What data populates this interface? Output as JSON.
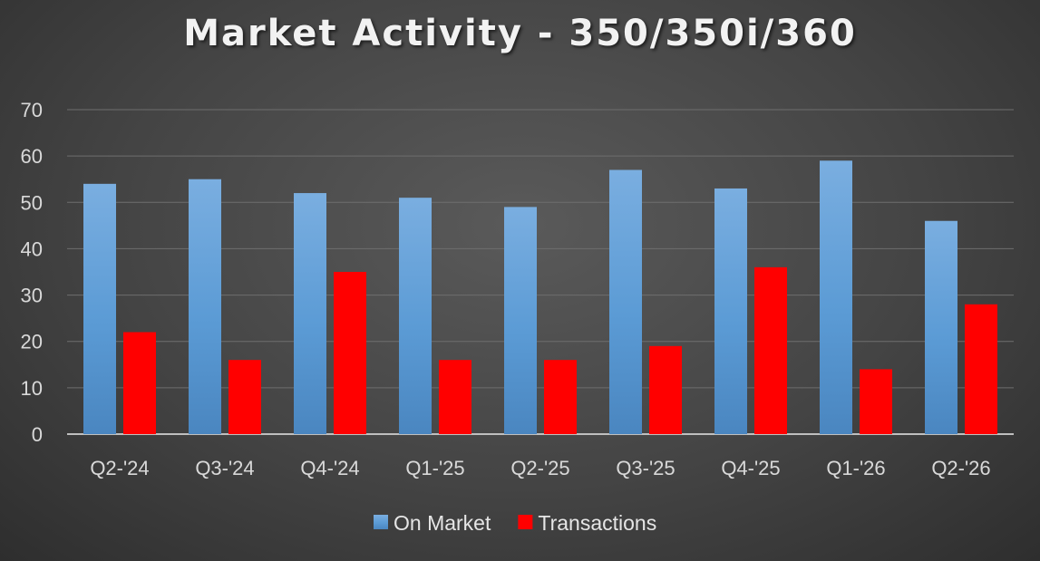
{
  "chart_data": {
    "type": "bar",
    "title": "Market Activity - 350/350i/360",
    "xlabel": "",
    "ylabel": "",
    "categories": [
      "Q2-'24",
      "Q3-'24",
      "Q4-'24",
      "Q1-'25",
      "Q2-'25",
      "Q3-'25",
      "Q4-'25",
      "Q1-'26",
      "Q2-'26"
    ],
    "series": [
      {
        "name": "On Market",
        "color": "#5b9bd5",
        "values": [
          54,
          55,
          52,
          51,
          49,
          57,
          53,
          59,
          46
        ]
      },
      {
        "name": "Transactions",
        "color": "#ff0000",
        "values": [
          22,
          16,
          35,
          16,
          16,
          19,
          36,
          14,
          28
        ]
      }
    ],
    "ylim": [
      0,
      70
    ],
    "yticks": [
      0,
      10,
      20,
      30,
      40,
      50,
      60,
      70
    ],
    "grid": true,
    "legend_position": "bottom"
  }
}
